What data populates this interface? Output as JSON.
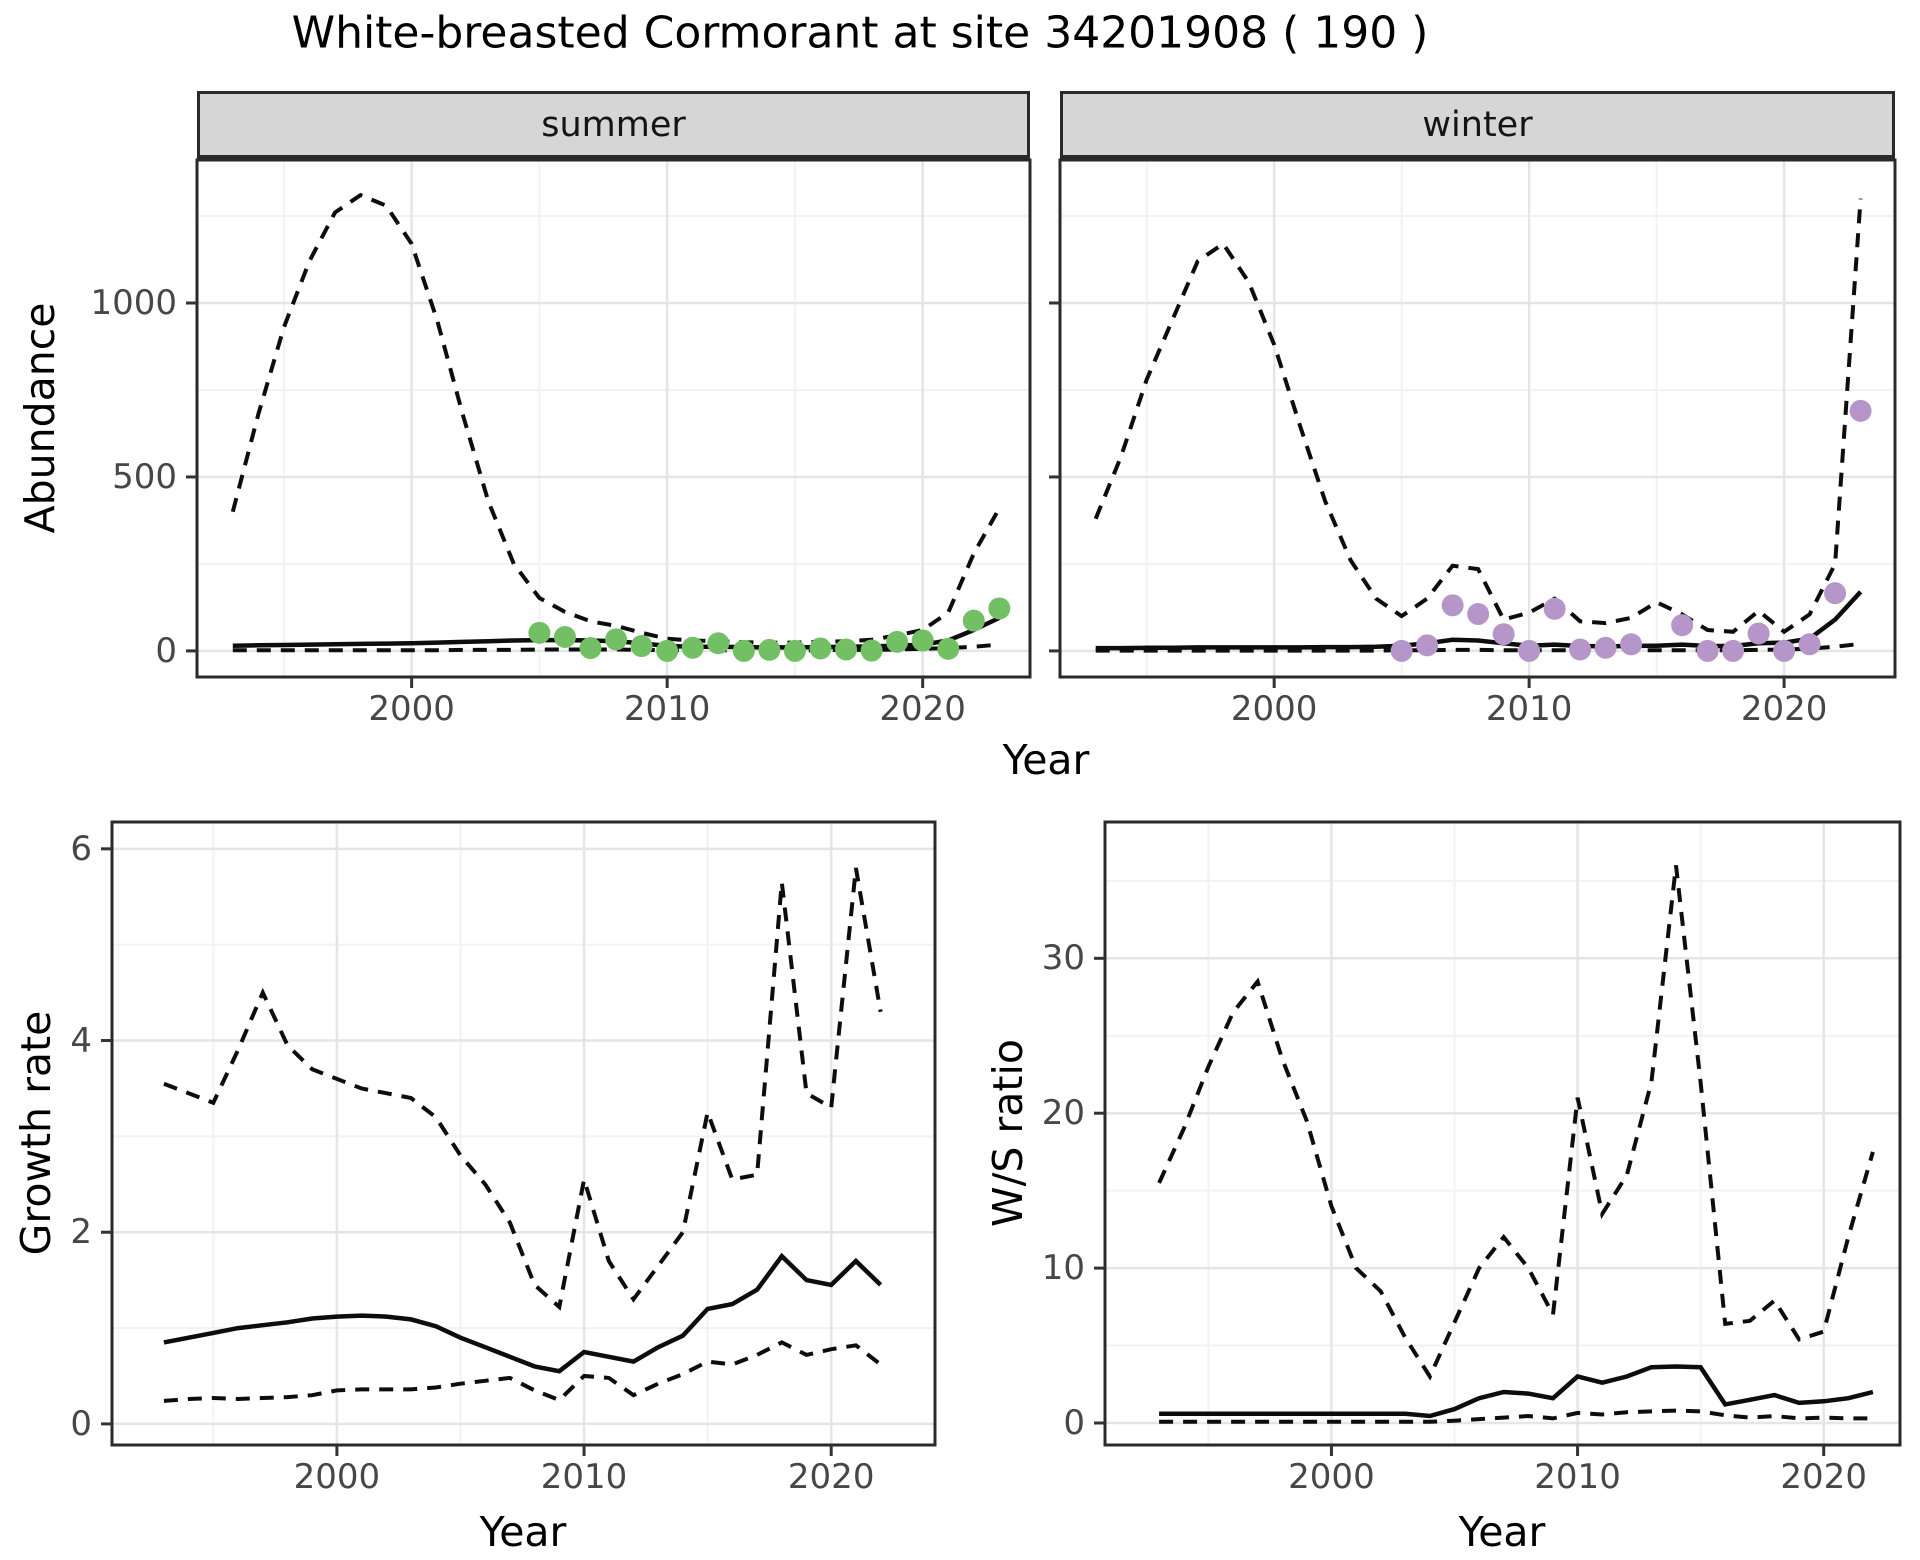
{
  "title": "White-breasted Cormorant at site 34201908 ( 190 )",
  "facets": [
    "summer",
    "winter"
  ],
  "axis_titles": {
    "abundance": "Abundance",
    "year": "Year",
    "growth": "Growth rate",
    "ws": "W/S ratio"
  },
  "colors": {
    "summer_point": "#72c063",
    "winter_point": "#b696c8",
    "line": "#0d0d0d",
    "strip_bg": "#d6d6d6",
    "grid_major": "#e5e5e5",
    "grid_minor": "#f2f2f2",
    "panel_border": "#2a2a2a",
    "tick_text": "#474747"
  },
  "chart_data": [
    {
      "id": "abundance_summer",
      "type": "line",
      "facet_label": "summer",
      "ylabel": "Abundance",
      "xlabel": "Year",
      "x_years": [
        1993,
        1994,
        1995,
        1996,
        1997,
        1998,
        1999,
        2000,
        2001,
        2002,
        2003,
        2004,
        2005,
        2006,
        2007,
        2008,
        2009,
        2010,
        2011,
        2012,
        2013,
        2014,
        2015,
        2016,
        2017,
        2018,
        2019,
        2020,
        2021,
        2022,
        2023
      ],
      "series": [
        {
          "name": "upper_ci",
          "style": "dashed",
          "values": [
            400,
            680,
            930,
            1120,
            1260,
            1310,
            1280,
            1170,
            950,
            680,
            430,
            250,
            152,
            112,
            85,
            72,
            52,
            35,
            30,
            28,
            25,
            24,
            24,
            26,
            28,
            32,
            45,
            60,
            110,
            280,
            410
          ]
        },
        {
          "name": "mean",
          "style": "solid",
          "values": [
            15,
            16,
            17,
            18,
            19,
            20,
            21,
            22,
            24,
            26,
            28,
            30,
            31,
            31,
            30,
            28,
            22,
            14,
            12,
            12,
            11,
            10,
            10,
            11,
            12,
            13,
            15,
            18,
            30,
            60,
            95
          ]
        },
        {
          "name": "lower_ci",
          "style": "dashed",
          "values": [
            2,
            2,
            2,
            2,
            2,
            2,
            2,
            2,
            2,
            3,
            3,
            3,
            4,
            4,
            4,
            4,
            3,
            2,
            2,
            2,
            2,
            2,
            2,
            2,
            3,
            3,
            4,
            6,
            8,
            12,
            18
          ]
        }
      ],
      "points": {
        "name": "observed_counts",
        "color_key": "summer_point",
        "x": [
          2005,
          2006,
          2007,
          2008,
          2009,
          2010,
          2011,
          2012,
          2013,
          2014,
          2015,
          2016,
          2017,
          2018,
          2019,
          2020,
          2021,
          2022,
          2023
        ],
        "y": [
          52,
          40,
          8,
          33,
          14,
          0,
          9,
          22,
          0,
          3,
          0,
          7,
          4,
          1,
          26,
          30,
          6,
          87,
          122
        ]
      },
      "xlim": [
        1991.6,
        2024.2
      ],
      "ylim": [
        -75,
        1411
      ],
      "xticks": {
        "major": [
          2000,
          2010,
          2020
        ],
        "minor": [
          1995,
          2005,
          2015
        ],
        "labels": [
          "2000",
          "2010",
          "2020"
        ]
      },
      "yticks": {
        "major": [
          0,
          500,
          1000
        ],
        "minor": [
          250,
          750,
          1250
        ],
        "labels": [
          "0",
          "500",
          "1000"
        ]
      }
    },
    {
      "id": "abundance_winter",
      "type": "line",
      "facet_label": "winter",
      "ylabel": "Abundance",
      "xlabel": "Year",
      "x_years": [
        1993,
        1994,
        1995,
        1996,
        1997,
        1998,
        1999,
        2000,
        2001,
        2002,
        2003,
        2004,
        2005,
        2006,
        2007,
        2008,
        2009,
        2010,
        2011,
        2012,
        2013,
        2014,
        2015,
        2016,
        2017,
        2018,
        2019,
        2020,
        2021,
        2022,
        2023
      ],
      "series": [
        {
          "name": "upper_ci",
          "style": "dashed",
          "values": [
            380,
            560,
            780,
            950,
            1120,
            1170,
            1060,
            880,
            650,
            430,
            260,
            150,
            100,
            150,
            245,
            235,
            90,
            110,
            150,
            85,
            80,
            95,
            140,
            105,
            60,
            55,
            115,
            55,
            105,
            250,
            1300
          ]
        },
        {
          "name": "mean",
          "style": "solid",
          "values": [
            8,
            8,
            9,
            9,
            10,
            10,
            10,
            10,
            10,
            11,
            11,
            12,
            15,
            22,
            32,
            30,
            22,
            15,
            18,
            14,
            13,
            14,
            15,
            18,
            14,
            14,
            22,
            24,
            35,
            90,
            170
          ]
        },
        {
          "name": "lower_ci",
          "style": "dashed",
          "values": [
            1,
            1,
            1,
            1,
            1,
            1,
            1,
            1,
            1,
            1,
            1,
            1,
            2,
            2,
            3,
            3,
            2,
            2,
            2,
            2,
            2,
            2,
            2,
            2,
            2,
            2,
            3,
            4,
            6,
            12,
            20
          ]
        }
      ],
      "points": {
        "name": "observed_counts",
        "color_key": "winter_point",
        "x": [
          2005,
          2006,
          2007,
          2008,
          2009,
          2010,
          2011,
          2012,
          2013,
          2014,
          2016,
          2017,
          2018,
          2019,
          2020,
          2021,
          2022,
          2023
        ],
        "y": [
          0,
          16,
          131,
          106,
          48,
          0,
          121,
          4,
          9,
          19,
          74,
          0,
          0,
          50,
          0,
          19,
          166,
          690
        ]
      },
      "xlim": [
        1991.6,
        2024.35
      ],
      "ylim": [
        -75,
        1411
      ],
      "xticks": {
        "major": [
          2000,
          2010,
          2020
        ],
        "minor": [
          1995,
          2005,
          2015
        ],
        "labels": [
          "2000",
          "2010",
          "2020"
        ]
      },
      "yticks": {
        "major": [
          0,
          500,
          1000
        ],
        "minor": [
          250,
          750,
          1250
        ],
        "labels": [
          "0",
          "500",
          "1000"
        ]
      }
    },
    {
      "id": "growth_rate",
      "type": "line",
      "facet_label": "",
      "ylabel": "Growth rate",
      "xlabel": "Year",
      "x_years": [
        1993,
        1994,
        1995,
        1996,
        1997,
        1998,
        1999,
        2000,
        2001,
        2002,
        2003,
        2004,
        2005,
        2006,
        2007,
        2008,
        2009,
        2010,
        2011,
        2012,
        2013,
        2014,
        2015,
        2016,
        2017,
        2018,
        2019,
        2020,
        2021,
        2022
      ],
      "series": [
        {
          "name": "upper_ci",
          "style": "dashed",
          "values": [
            3.55,
            3.45,
            3.35,
            3.9,
            4.5,
            3.95,
            3.7,
            3.6,
            3.5,
            3.45,
            3.4,
            3.2,
            2.8,
            2.5,
            2.1,
            1.45,
            1.22,
            2.55,
            1.7,
            1.3,
            1.65,
            2.0,
            3.25,
            2.55,
            2.6,
            5.65,
            3.45,
            3.3,
            5.8,
            4.3
          ]
        },
        {
          "name": "mean",
          "style": "solid",
          "values": [
            0.85,
            0.9,
            0.95,
            1.0,
            1.03,
            1.06,
            1.1,
            1.12,
            1.13,
            1.12,
            1.09,
            1.02,
            0.9,
            0.8,
            0.7,
            0.6,
            0.55,
            0.75,
            0.7,
            0.65,
            0.8,
            0.92,
            1.2,
            1.25,
            1.4,
            1.75,
            1.5,
            1.45,
            1.7,
            1.45
          ]
        },
        {
          "name": "lower_ci",
          "style": "dashed",
          "values": [
            0.24,
            0.26,
            0.27,
            0.26,
            0.27,
            0.28,
            0.3,
            0.35,
            0.36,
            0.36,
            0.36,
            0.38,
            0.42,
            0.45,
            0.48,
            0.35,
            0.25,
            0.5,
            0.48,
            0.3,
            0.42,
            0.52,
            0.65,
            0.62,
            0.72,
            0.85,
            0.72,
            0.78,
            0.82,
            0.62
          ]
        }
      ],
      "points": null,
      "xlim": [
        1990.9,
        2024.2
      ],
      "ylim": [
        -0.22,
        6.28
      ],
      "xticks": {
        "major": [
          2000,
          2010,
          2020
        ],
        "minor": [
          1995,
          2005,
          2015
        ],
        "labels": [
          "2000",
          "2010",
          "2020"
        ]
      },
      "yticks": {
        "major": [
          0,
          2,
          4,
          6
        ],
        "minor": [
          1,
          3,
          5
        ],
        "labels": [
          "0",
          "2",
          "4",
          "6"
        ]
      }
    },
    {
      "id": "ws_ratio",
      "type": "line",
      "facet_label": "",
      "ylabel": "W/S ratio",
      "xlabel": "Year",
      "x_years": [
        1993,
        1994,
        1995,
        1996,
        1997,
        1998,
        1999,
        2000,
        2001,
        2002,
        2003,
        2004,
        2005,
        2006,
        2007,
        2008,
        2009,
        2010,
        2011,
        2012,
        2013,
        2014,
        2015,
        2016,
        2017,
        2018,
        2019,
        2020,
        2021,
        2022
      ],
      "series": [
        {
          "name": "upper_ci",
          "style": "dashed",
          "values": [
            15.5,
            19,
            23,
            26.5,
            28.5,
            23.5,
            19.5,
            14,
            10,
            8.5,
            5.5,
            3,
            6.5,
            10,
            12,
            10,
            7,
            21,
            13.5,
            16,
            22,
            36,
            22,
            6.4,
            6.6,
            7.9,
            5.4,
            5.9,
            12,
            17.5
          ]
        },
        {
          "name": "mean",
          "style": "solid",
          "values": [
            0.6,
            0.6,
            0.6,
            0.6,
            0.6,
            0.6,
            0.6,
            0.6,
            0.6,
            0.6,
            0.6,
            0.45,
            0.9,
            1.6,
            2.0,
            1.9,
            1.6,
            3.0,
            2.6,
            3.0,
            3.6,
            3.65,
            3.6,
            1.2,
            1.5,
            1.8,
            1.3,
            1.4,
            1.6,
            2.0
          ]
        },
        {
          "name": "lower_ci",
          "style": "dashed",
          "values": [
            0.08,
            0.08,
            0.08,
            0.08,
            0.08,
            0.08,
            0.08,
            0.08,
            0.08,
            0.08,
            0.08,
            0.08,
            0.15,
            0.25,
            0.35,
            0.45,
            0.3,
            0.65,
            0.55,
            0.7,
            0.75,
            0.8,
            0.75,
            0.5,
            0.35,
            0.45,
            0.3,
            0.35,
            0.3,
            0.3
          ]
        }
      ],
      "points": null,
      "xlim": [
        1990.8,
        2023.1
      ],
      "ylim": [
        -1.42,
        38.8
      ],
      "xticks": {
        "major": [
          2000,
          2010,
          2020
        ],
        "minor": [
          1995,
          2005,
          2015
        ],
        "labels": [
          "2000",
          "2010",
          "2020"
        ]
      },
      "yticks": {
        "major": [
          0,
          10,
          20,
          30
        ],
        "minor": [
          5,
          15,
          25,
          35
        ],
        "labels": [
          "0",
          "10",
          "20",
          "30"
        ]
      }
    }
  ]
}
